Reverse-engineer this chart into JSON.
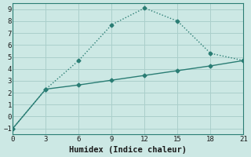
{
  "xlabel": "Humidex (Indice chaleur)",
  "background_color": "#cce8e4",
  "grid_color": "#aacfcb",
  "line_color": "#2a7d74",
  "line1_x": [
    0,
    3,
    6,
    9,
    12,
    15,
    18,
    21
  ],
  "line1_y": [
    -1.0,
    2.3,
    4.7,
    7.7,
    9.1,
    8.0,
    5.3,
    4.7
  ],
  "line2_x": [
    0,
    3,
    6,
    9,
    12,
    15,
    18,
    21
  ],
  "line2_y": [
    -1.0,
    2.3,
    2.65,
    3.05,
    3.45,
    3.85,
    4.25,
    4.7
  ],
  "xlim": [
    0,
    21
  ],
  "ylim": [
    -1.5,
    9.5
  ],
  "xticks": [
    0,
    3,
    6,
    9,
    12,
    15,
    18,
    21
  ],
  "yticks": [
    -1,
    0,
    1,
    2,
    3,
    4,
    5,
    6,
    7,
    8,
    9
  ],
  "tick_fontsize": 6.5,
  "xlabel_fontsize": 7.5
}
